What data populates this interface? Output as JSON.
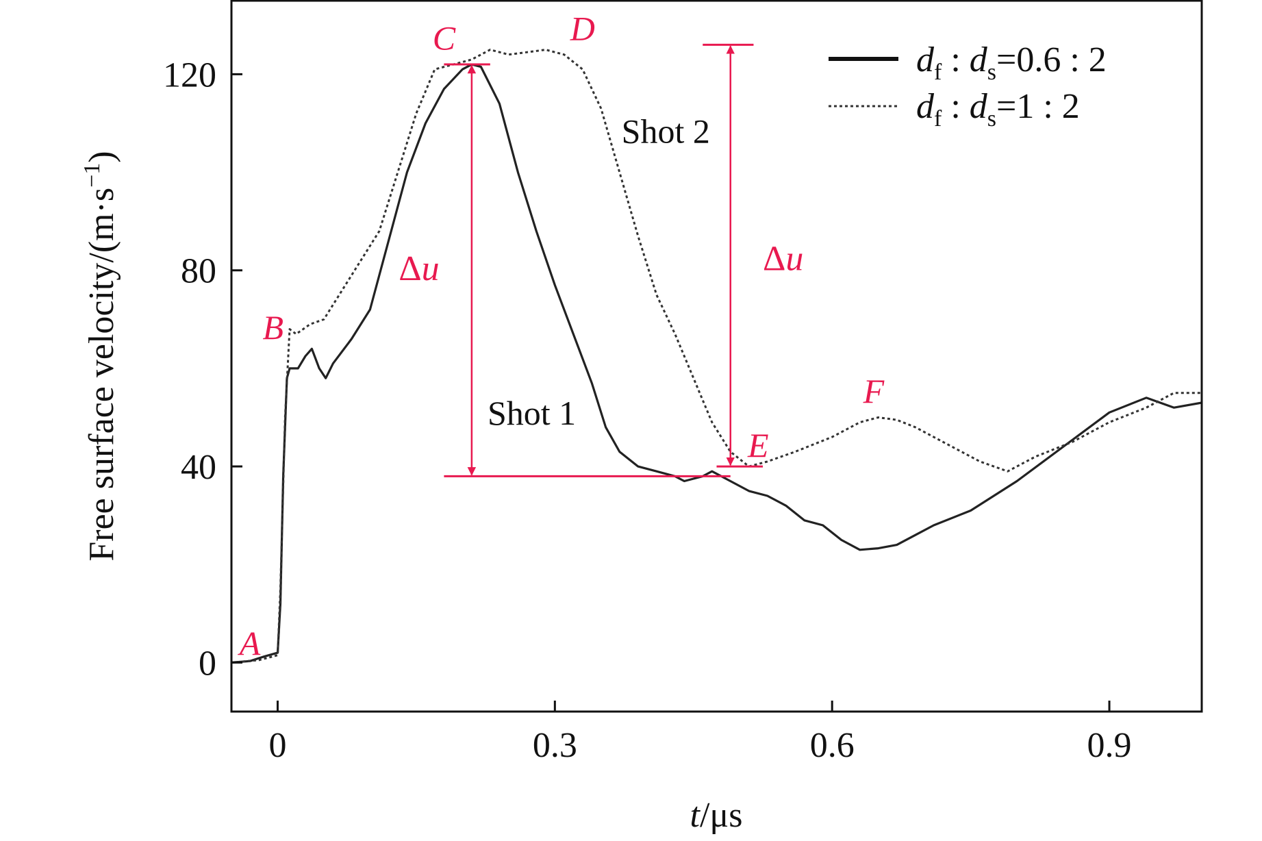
{
  "chart_data": {
    "type": "line",
    "xlabel_var": "t",
    "xlabel_unit": "/μs",
    "ylabel": "Free surface velocity/(m·s",
    "ylabel_exp": "−1",
    "ylabel_close": ")",
    "xlim": [
      -0.05,
      1.0
    ],
    "ylim": [
      -10,
      135
    ],
    "x_ticks": [
      0,
      0.3,
      0.6,
      0.9
    ],
    "x_tick_labels": [
      "0",
      "0.3",
      "0.6",
      "0.9"
    ],
    "y_ticks": [
      0,
      40,
      80,
      120
    ],
    "y_tick_labels": [
      "0",
      "40",
      "80",
      "120"
    ],
    "series": [
      {
        "name": "df : ds=0.6 : 2",
        "legend_var1": "d",
        "legend_sub1": "f",
        "legend_sep": " : ",
        "legend_var2": "d",
        "legend_sub2": "s",
        "legend_ratio": "=0.6 : 2",
        "style": "solid",
        "points": [
          [
            -0.05,
            0
          ],
          [
            -0.03,
            0.3
          ],
          [
            -0.015,
            1.2
          ],
          [
            0,
            2
          ],
          [
            0.003,
            12
          ],
          [
            0.006,
            38
          ],
          [
            0.01,
            58
          ],
          [
            0.013,
            60
          ],
          [
            0.022,
            60
          ],
          [
            0.03,
            62.5
          ],
          [
            0.037,
            64
          ],
          [
            0.045,
            60
          ],
          [
            0.052,
            58
          ],
          [
            0.06,
            61
          ],
          [
            0.08,
            66
          ],
          [
            0.1,
            72
          ],
          [
            0.12,
            86
          ],
          [
            0.14,
            100
          ],
          [
            0.16,
            110
          ],
          [
            0.18,
            117
          ],
          [
            0.2,
            121
          ],
          [
            0.21,
            122
          ],
          [
            0.22,
            121.5
          ],
          [
            0.24,
            114
          ],
          [
            0.26,
            100
          ],
          [
            0.28,
            88
          ],
          [
            0.3,
            77
          ],
          [
            0.32,
            67
          ],
          [
            0.34,
            57
          ],
          [
            0.355,
            48
          ],
          [
            0.37,
            43
          ],
          [
            0.39,
            40
          ],
          [
            0.41,
            39
          ],
          [
            0.43,
            38
          ],
          [
            0.44,
            37
          ],
          [
            0.46,
            38
          ],
          [
            0.47,
            39
          ],
          [
            0.49,
            37
          ],
          [
            0.51,
            35
          ],
          [
            0.53,
            34
          ],
          [
            0.55,
            32
          ],
          [
            0.57,
            29
          ],
          [
            0.59,
            28
          ],
          [
            0.61,
            25
          ],
          [
            0.63,
            23
          ],
          [
            0.65,
            23.3
          ],
          [
            0.67,
            24
          ],
          [
            0.69,
            26
          ],
          [
            0.71,
            28
          ],
          [
            0.75,
            31
          ],
          [
            0.8,
            37
          ],
          [
            0.85,
            44
          ],
          [
            0.9,
            51
          ],
          [
            0.94,
            54
          ],
          [
            0.97,
            52
          ],
          [
            1.0,
            53
          ]
        ]
      },
      {
        "name": "df : ds=1 : 2",
        "legend_var1": "d",
        "legend_sub1": "f",
        "legend_sep": " : ",
        "legend_var2": "d",
        "legend_sub2": "s",
        "legend_ratio": "=1 : 2",
        "style": "dotted",
        "points": [
          [
            -0.05,
            0
          ],
          [
            -0.02,
            0.5
          ],
          [
            0,
            1.5
          ],
          [
            0.003,
            15
          ],
          [
            0.008,
            50
          ],
          [
            0.013,
            68
          ],
          [
            0.02,
            67
          ],
          [
            0.035,
            69
          ],
          [
            0.05,
            70
          ],
          [
            0.07,
            76
          ],
          [
            0.09,
            82
          ],
          [
            0.11,
            88
          ],
          [
            0.13,
            100
          ],
          [
            0.15,
            112
          ],
          [
            0.17,
            121
          ],
          [
            0.19,
            122
          ],
          [
            0.21,
            123
          ],
          [
            0.23,
            125
          ],
          [
            0.25,
            124
          ],
          [
            0.27,
            124.5
          ],
          [
            0.29,
            125
          ],
          [
            0.31,
            124
          ],
          [
            0.33,
            121
          ],
          [
            0.35,
            113
          ],
          [
            0.37,
            100
          ],
          [
            0.39,
            87
          ],
          [
            0.41,
            75
          ],
          [
            0.43,
            67
          ],
          [
            0.45,
            58
          ],
          [
            0.47,
            49
          ],
          [
            0.49,
            43
          ],
          [
            0.51,
            40
          ],
          [
            0.53,
            41
          ],
          [
            0.56,
            43
          ],
          [
            0.6,
            46
          ],
          [
            0.63,
            49
          ],
          [
            0.65,
            50
          ],
          [
            0.67,
            49.5
          ],
          [
            0.69,
            48
          ],
          [
            0.72,
            45
          ],
          [
            0.76,
            41
          ],
          [
            0.79,
            39
          ],
          [
            0.82,
            42
          ],
          [
            0.86,
            45
          ],
          [
            0.9,
            49
          ],
          [
            0.94,
            52
          ],
          [
            0.97,
            55
          ],
          [
            1.0,
            55
          ]
        ]
      }
    ],
    "point_labels": [
      {
        "text": "A",
        "x": -0.03,
        "y": 1.5
      },
      {
        "text": "B",
        "x": -0.005,
        "y": 66
      },
      {
        "text": "C",
        "x": 0.18,
        "y": 125
      },
      {
        "text": "D",
        "x": 0.33,
        "y": 127
      },
      {
        "text": "E",
        "x": 0.52,
        "y": 42
      },
      {
        "text": "F",
        "x": 0.645,
        "y": 53
      }
    ],
    "annotations": [
      {
        "text": "Shot 1",
        "x": 0.275,
        "y": 48.5
      },
      {
        "text": "Shot 2",
        "x": 0.42,
        "y": 106
      }
    ],
    "delta_u": [
      {
        "var_prefix": "Δ",
        "var": "u",
        "x": 0.21,
        "y_top": 122,
        "y_bottom": 38,
        "bar_x0": 0.18,
        "bar_x1": 0.23,
        "base_x0": 0.18,
        "base_x1": 0.49,
        "label_x": 0.175,
        "label_y": 78
      },
      {
        "var_prefix": "Δ",
        "var": "u",
        "x": 0.49,
        "y_top": 126,
        "y_bottom": 40,
        "bar_x0": 0.46,
        "bar_x1": 0.515,
        "base_x0": 0.475,
        "base_x1": 0.525,
        "label_x": 0.525,
        "label_y": 80
      }
    ],
    "colors": {
      "line": "#222222",
      "annotation": "#e8194f",
      "axis": "#111111"
    }
  }
}
